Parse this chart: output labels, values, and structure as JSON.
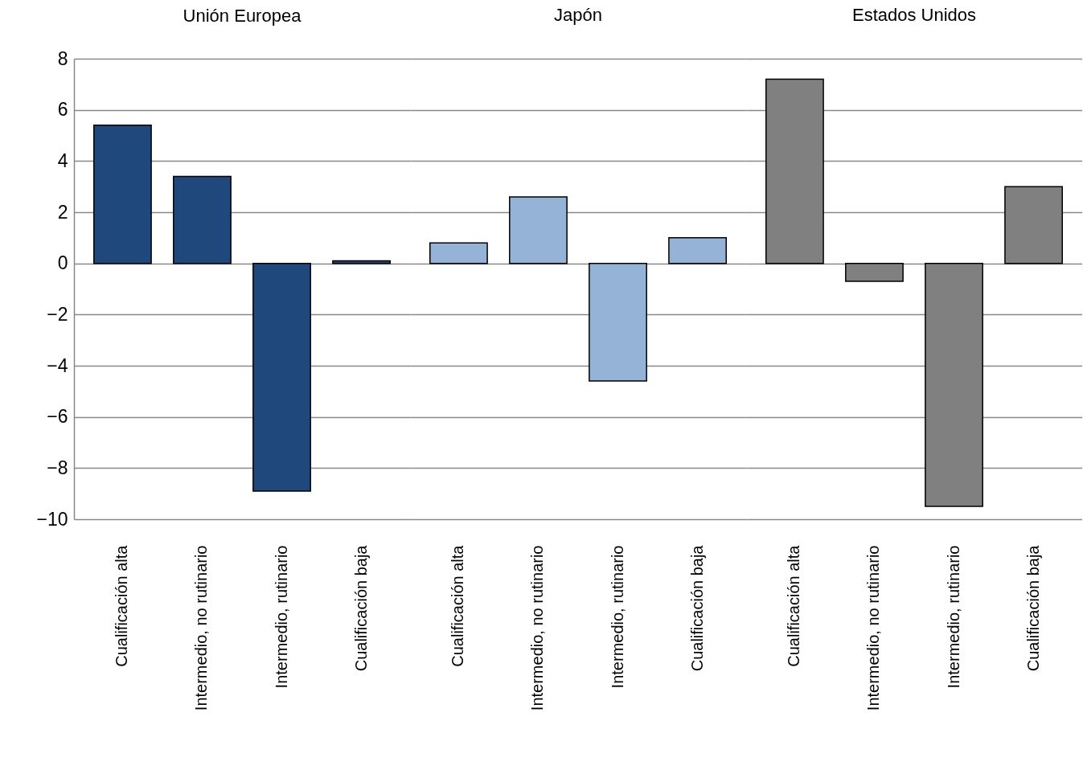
{
  "chart_data": [
    {
      "type": "bar",
      "title": "Unión Europea",
      "categories": [
        "Cualificación alta",
        "Intermedio, no rutinario",
        "Intermedio, rutinario",
        "Cualificación baja"
      ],
      "values": [
        5.4,
        3.4,
        -8.9,
        0.1
      ],
      "colors": [
        "#1f497d",
        "#1f497d",
        "#1f497d",
        "#1f497d"
      ],
      "ylim": [
        -10,
        8
      ],
      "yticks": [
        -10,
        -8,
        -6,
        -4,
        -2,
        0,
        2,
        4,
        6,
        8
      ],
      "grid": "y"
    },
    {
      "type": "bar",
      "title": "Japón",
      "categories": [
        "Cualificación alta",
        "Intermedio, no rutinario",
        "Intermedio, rutinario",
        "Cualificación baja"
      ],
      "values": [
        0.8,
        2.6,
        -4.6,
        1.0
      ],
      "colors": [
        "#95b3d7",
        "#95b3d7",
        "#95b3d7",
        "#95b3d7"
      ],
      "ylim": [
        -10,
        8
      ],
      "yticks": [
        -10,
        -8,
        -6,
        -4,
        -2,
        0,
        2,
        4,
        6,
        8
      ],
      "grid": "y",
      "tick_labels": "x"
    },
    {
      "type": "bar",
      "title": "Estados Unidos",
      "categories": [
        "Cualificación alta",
        "Intermedio, no rutinario",
        "Intermedio, rutinario",
        "Cualificación baja"
      ],
      "values": [
        7.2,
        -0.7,
        -9.5,
        3.0
      ],
      "colors": [
        "#808080",
        "#808080",
        "#808080",
        "#808080"
      ],
      "ylim": [
        -10,
        8
      ],
      "yticks": [
        -10,
        -8,
        -6,
        -4,
        -2,
        0,
        2,
        4,
        6,
        8
      ],
      "grid": "y",
      "tick_labels": "x"
    }
  ]
}
